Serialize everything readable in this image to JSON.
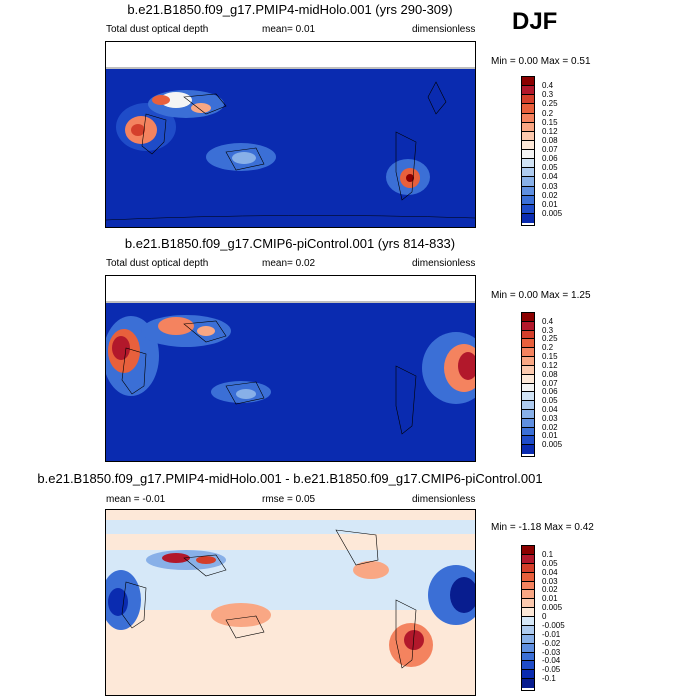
{
  "season": "DJF",
  "panels": [
    {
      "title": "b.e21.B1850.f09_g17.PMIP4-midHolo.001 (yrs 290-309)",
      "left": "Total dust optical depth",
      "center": "mean=  0.01",
      "right": "dimensionless",
      "minmax": "Min =  0.00 Max =  0.51",
      "levels": [
        "0.4",
        "0.3",
        "0.25",
        "0.2",
        "0.15",
        "0.12",
        "0.08",
        "0.07",
        "0.06",
        "0.05",
        "0.04",
        "0.03",
        "0.02",
        "0.01",
        "0.005"
      ],
      "colors": [
        "#8b0000",
        "#b2182b",
        "#d43f2b",
        "#e8603c",
        "#f4835f",
        "#f9a784",
        "#fcc9ae",
        "#fde8d8",
        "#f4f4f4",
        "#d1e3f5",
        "#aecbef",
        "#88b0e8",
        "#5f8fe0",
        "#3b6fd6",
        "#1f4cc8",
        "#0a2bb0"
      ]
    },
    {
      "title": "b.e21.B1850.f09_g17.CMIP6-piControl.001 (yrs 814-833)",
      "left": "Total dust optical depth",
      "center": "mean=  0.02",
      "right": "dimensionless",
      "minmax": "Min =  0.00 Max =  1.25",
      "levels": [
        "0.4",
        "0.3",
        "0.25",
        "0.2",
        "0.15",
        "0.12",
        "0.08",
        "0.07",
        "0.06",
        "0.05",
        "0.04",
        "0.03",
        "0.02",
        "0.01",
        "0.005"
      ],
      "colors": [
        "#8b0000",
        "#b2182b",
        "#d43f2b",
        "#e8603c",
        "#f4835f",
        "#f9a784",
        "#fcc9ae",
        "#fde8d8",
        "#f4f4f4",
        "#d1e3f5",
        "#aecbef",
        "#88b0e8",
        "#5f8fe0",
        "#3b6fd6",
        "#1f4cc8",
        "#0a2bb0"
      ]
    },
    {
      "title": "b.e21.B1850.f09_g17.PMIP4-midHolo.001 - b.e21.B1850.f09_g17.CMIP6-piControl.001",
      "left": "mean = -0.01",
      "center": "rmse =  0.05",
      "right": "dimensionless",
      "minmax": "Min = -1.18 Max =  0.42",
      "levels": [
        "0.1",
        "0.05",
        "0.04",
        "0.03",
        "0.02",
        "0.01",
        "0.005",
        "0",
        "-0.005",
        "-0.01",
        "-0.02",
        "-0.03",
        "-0.04",
        "-0.05",
        "-0.1"
      ],
      "colors": [
        "#8b0000",
        "#b2182b",
        "#d43f2b",
        "#e8603c",
        "#f4835f",
        "#f9a784",
        "#fcc9ae",
        "#fde8d8",
        "#d6e8f8",
        "#aecbef",
        "#88b0e8",
        "#5f8fe0",
        "#3b6fd6",
        "#1f4cc8",
        "#0a2bb0",
        "#081d8f"
      ]
    }
  ],
  "chart_data": {
    "type": "heatmap",
    "season": "DJF",
    "maps": [
      {
        "title": "b.e21.B1850.f09_g17.PMIP4-midHolo.001 (yrs 290-309)",
        "variable": "Total dust optical depth",
        "mean": 0.01,
        "min": 0.0,
        "max": 0.51,
        "units": "dimensionless"
      },
      {
        "title": "b.e21.B1850.f09_g17.CMIP6-piControl.001 (yrs 814-833)",
        "variable": "Total dust optical depth",
        "mean": 0.02,
        "min": 0.0,
        "max": 1.25,
        "units": "dimensionless"
      },
      {
        "title": "b.e21.B1850.f09_g17.PMIP4-midHolo.001 - b.e21.B1850.f09_g17.CMIP6-piControl.001",
        "mean": -0.01,
        "rmse": 0.05,
        "min": -1.18,
        "max": 0.42,
        "units": "dimensionless"
      }
    ]
  }
}
